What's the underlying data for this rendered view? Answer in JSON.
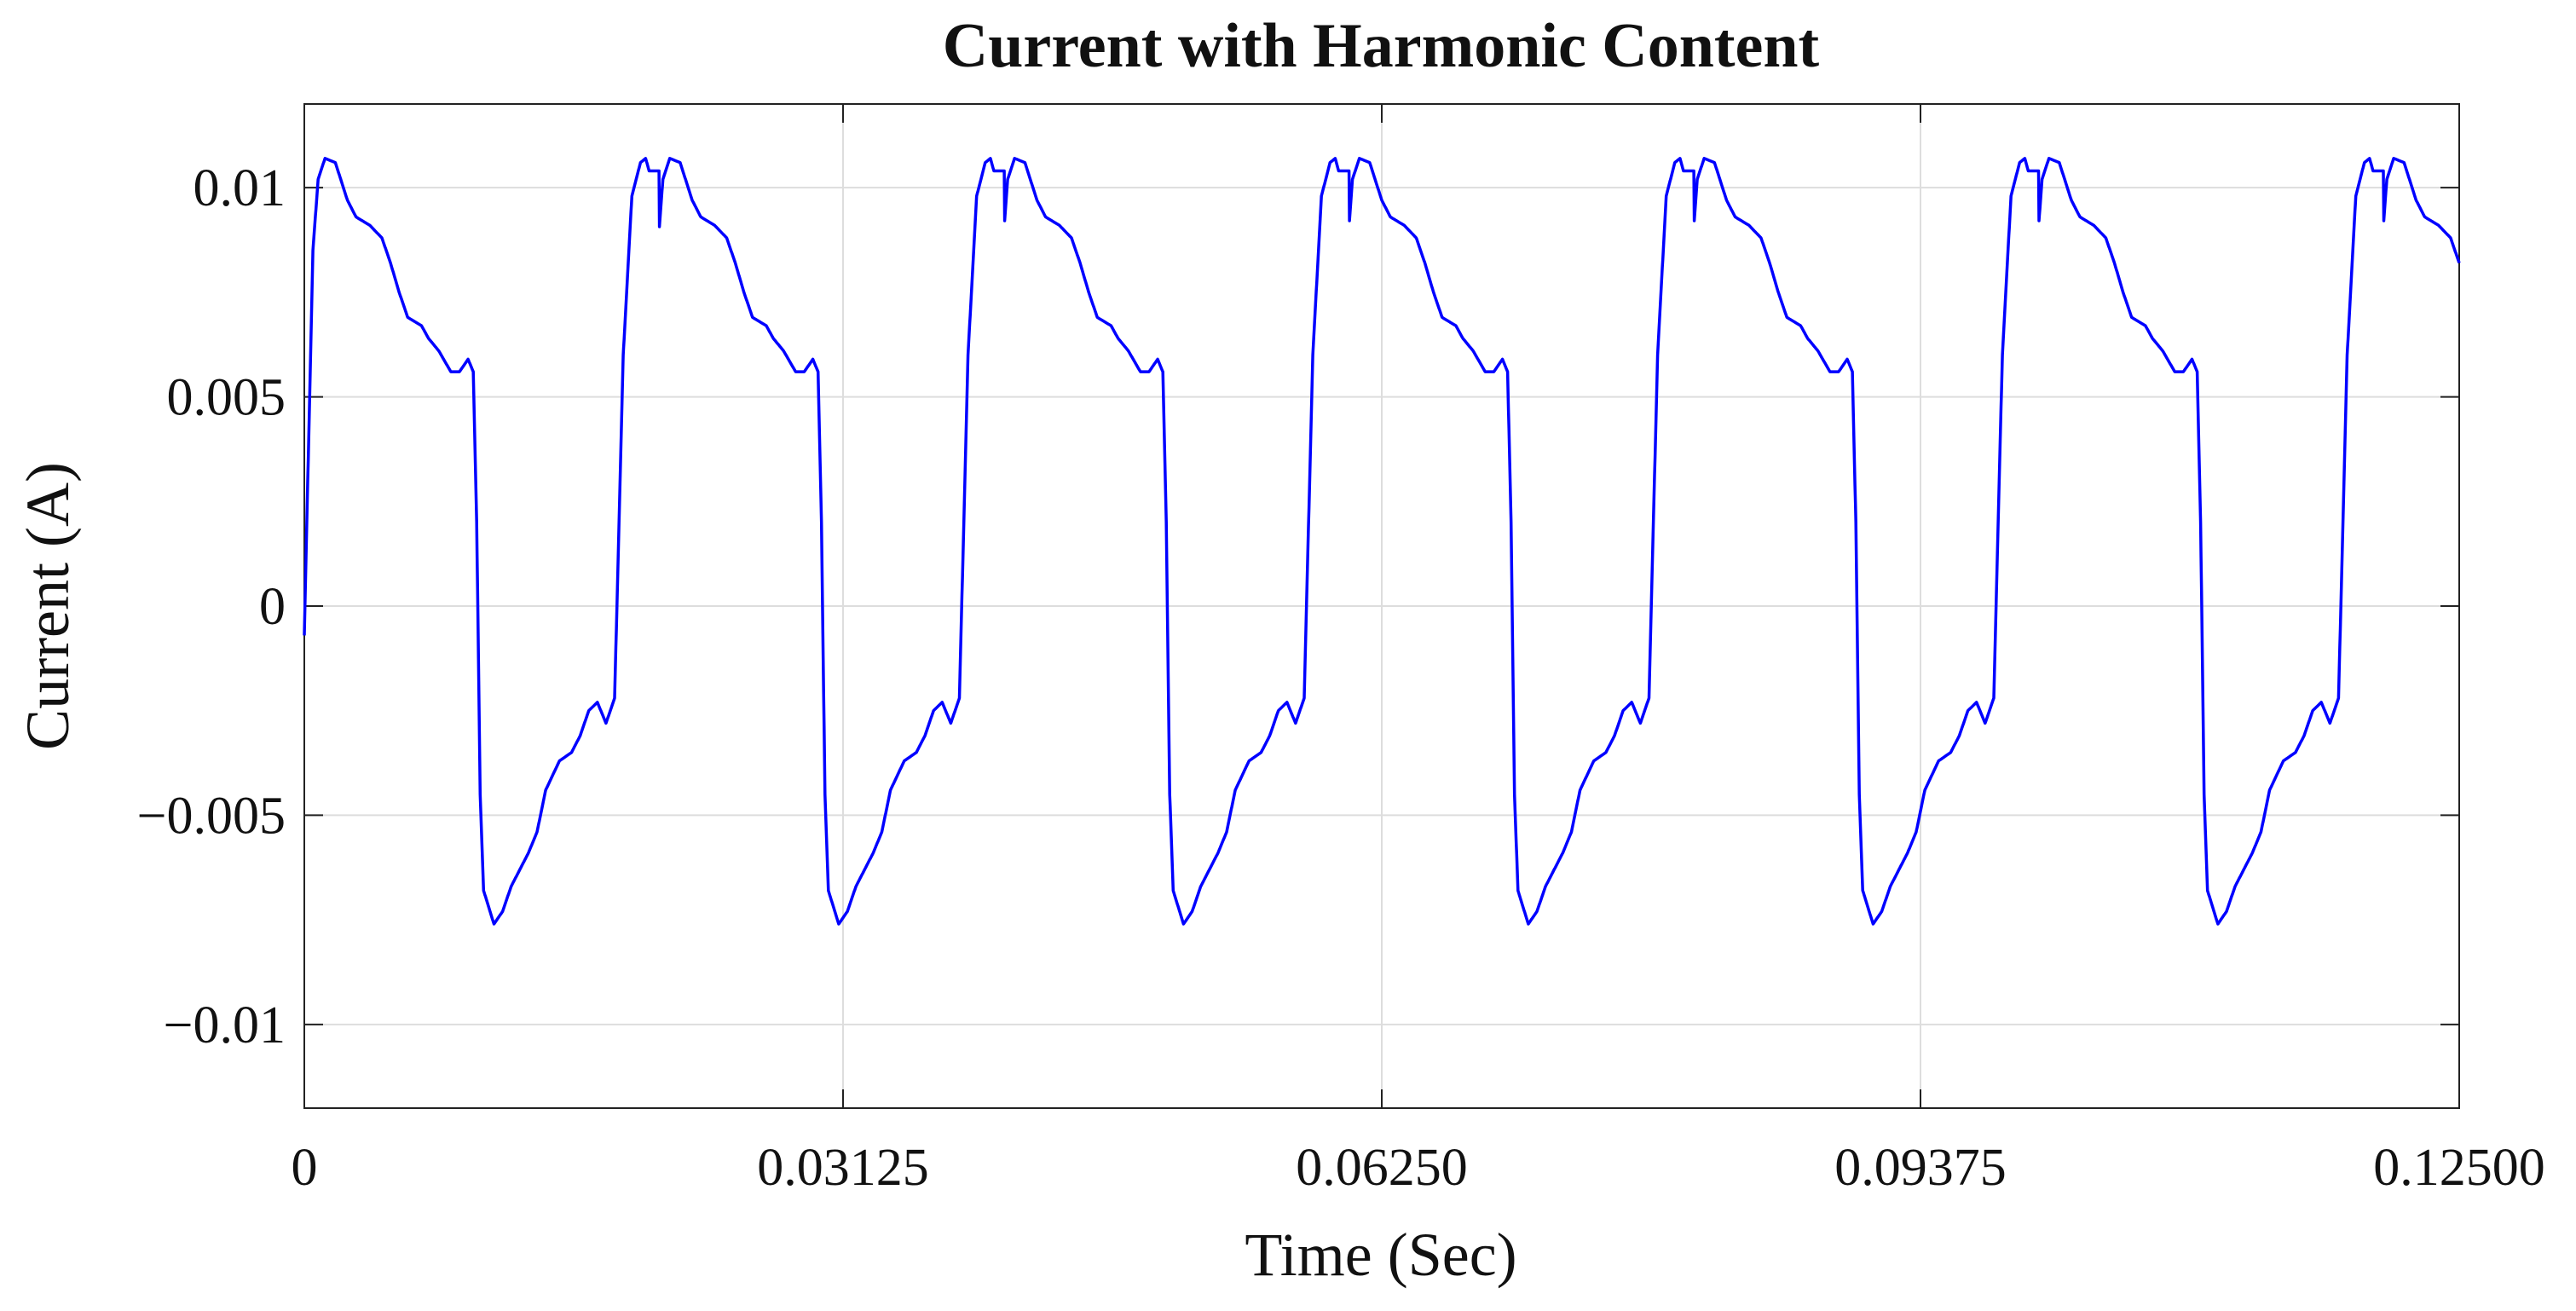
{
  "chart_data": {
    "type": "line",
    "title": "Current with Harmonic Content",
    "xlabel": "Time (Sec)",
    "ylabel": "Current (A)",
    "xlim": [
      0,
      0.125
    ],
    "ylim": [
      -0.012,
      0.012
    ],
    "x_ticks": [
      0,
      0.03125,
      0.0625,
      0.09375,
      0.125
    ],
    "x_tick_labels": [
      "0",
      "0.03125",
      "0.06250",
      "0.09375",
      "0.12500"
    ],
    "y_ticks": [
      -0.01,
      -0.005,
      0,
      0.005,
      0.01
    ],
    "y_tick_labels": [
      "−0.01",
      "−0.005",
      "0",
      "0.005",
      "0.01"
    ],
    "grid": true,
    "line_color": "#0000ff",
    "period": 0.02,
    "waveform_period": {
      "t": [
        0,
        0.0002,
        0.0005,
        0.0008,
        0.0012,
        0.0018,
        0.0025,
        0.003,
        0.0038,
        0.0045,
        0.005,
        0.0055,
        0.006,
        0.0068,
        0.0072,
        0.0078,
        0.0085,
        0.009,
        0.0095,
        0.0098,
        0.01,
        0.0102,
        0.0104,
        0.0107,
        0.011,
        0.0115,
        0.012,
        0.0125,
        0.013,
        0.0135,
        0.014,
        0.0148,
        0.0155,
        0.016,
        0.0165,
        0.017,
        0.0175,
        0.018,
        0.0185,
        0.019,
        0.0195,
        0.0198,
        0.02
      ],
      "y": [
        -0.0007,
        0.003,
        0.0085,
        0.0102,
        0.0107,
        0.0106,
        0.0097,
        0.0093,
        0.0091,
        0.0088,
        0.0082,
        0.0075,
        0.0069,
        0.0067,
        0.0064,
        0.0061,
        0.0056,
        0.0056,
        0.0059,
        0.0056,
        0.002,
        -0.0045,
        -0.0068,
        -0.0072,
        -0.0076,
        -0.0073,
        -0.0067,
        -0.0063,
        -0.0059,
        -0.0054,
        -0.0044,
        -0.0037,
        -0.0035,
        -0.0031,
        -0.0025,
        -0.0023,
        -0.0028,
        -0.0022,
        0.006,
        0.0098,
        0.0106,
        0.0107,
        0.0104
      ]
    }
  }
}
